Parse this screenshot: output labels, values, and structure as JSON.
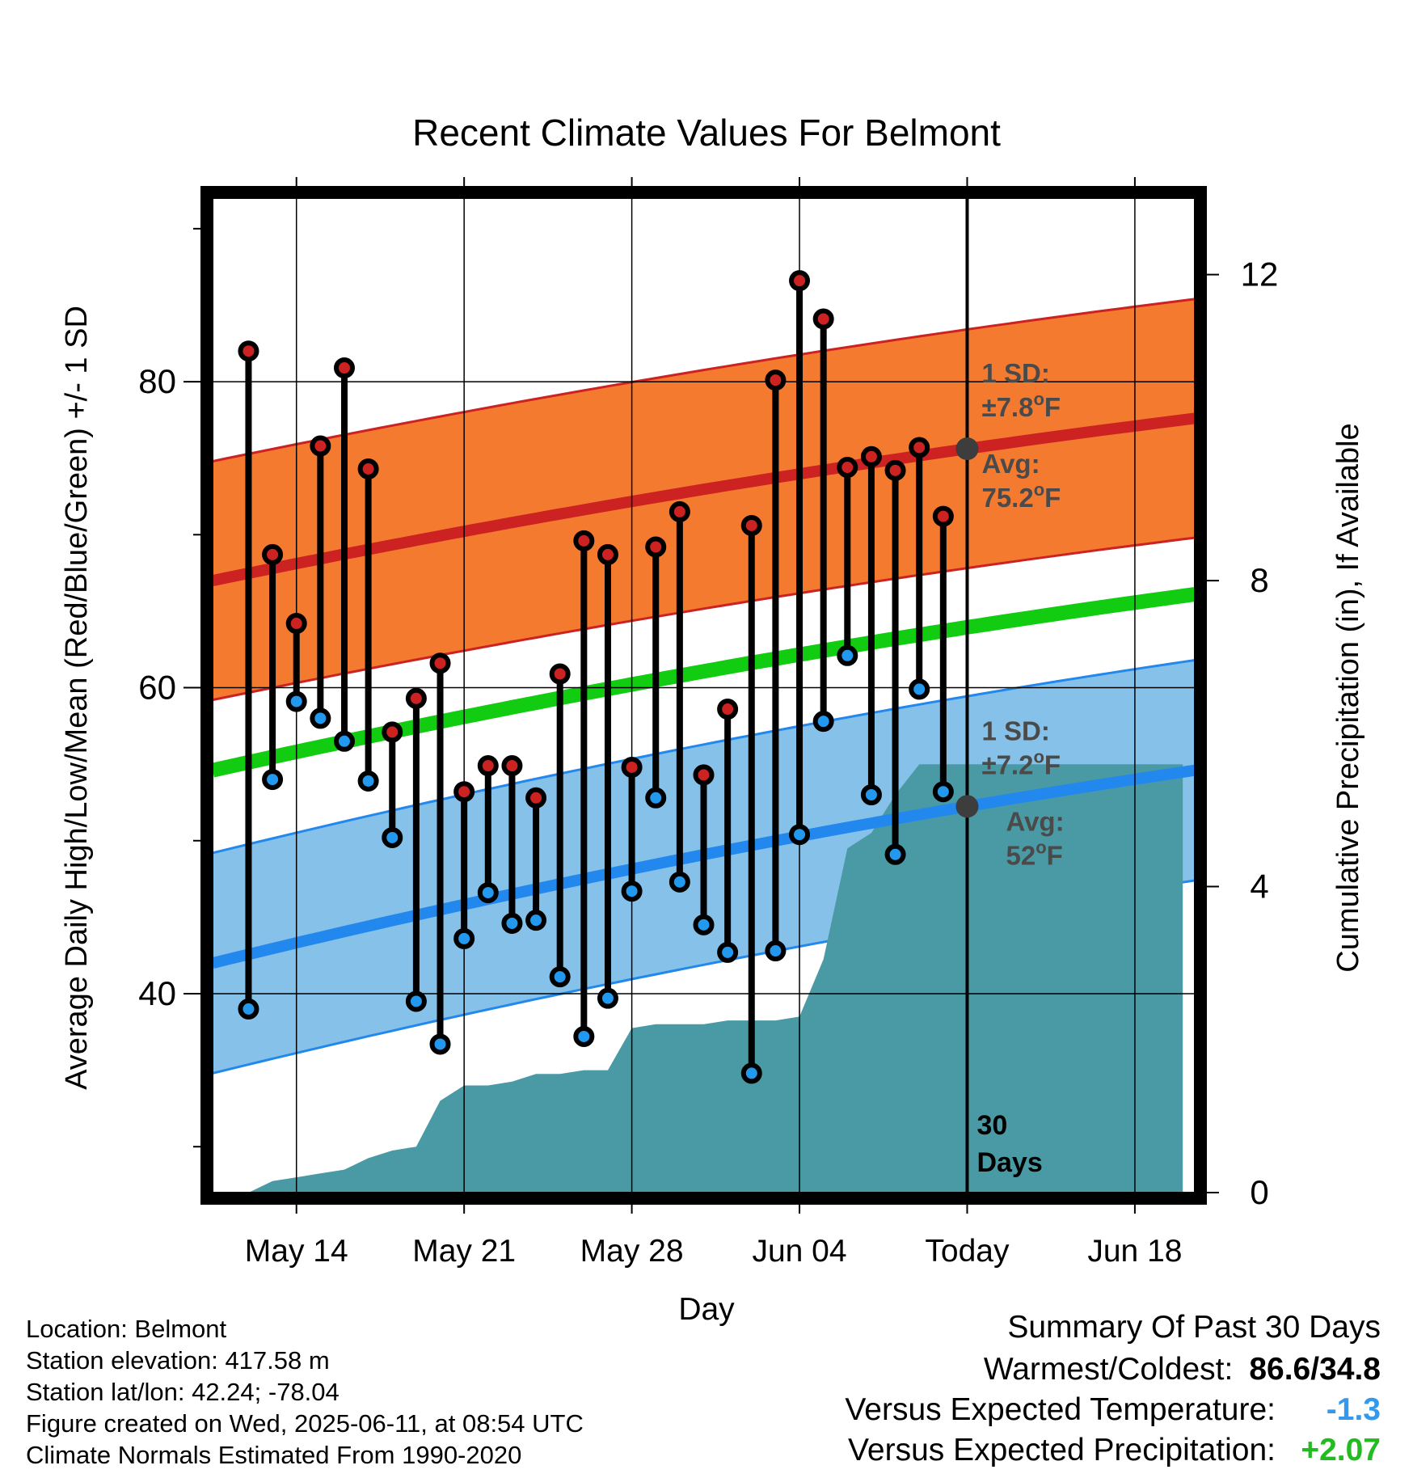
{
  "chart_data": {
    "type": "line",
    "title": "Recent Climate Values For Belmont",
    "xlabel": "Day",
    "ylabel_left": "Average Daily High/Low/Mean (Red/Blue/Green) +/- 1 SD",
    "ylabel_right": "Cumulative Precipitation (in), If Available",
    "x_tick_labels": [
      "May 14",
      "May 21",
      "May 28",
      "Jun 04",
      "Today",
      "Jun 18"
    ],
    "x_tick_days": [
      3,
      10,
      17,
      24,
      31,
      38
    ],
    "x_range_days": [
      -0.5,
      40.5
    ],
    "y_left_ticks": [
      40,
      60,
      80
    ],
    "y_left_range": [
      27,
      92
    ],
    "y_right_ticks": [
      0,
      4,
      8,
      12
    ],
    "y_right_range_at_left_axis": [
      27,
      0
    ],
    "y_right_scale_in_per_left_unit": 0.2,
    "days_note": "day 0 = May 11, today = Jun 11",
    "normals": {
      "high_mean": {
        "start": 67.0,
        "end": 77.6,
        "color": "#cc2222"
      },
      "high_sd": 7.8,
      "low_mean": {
        "start": 42.0,
        "end": 54.6,
        "color": "#2288ee"
      },
      "low_sd": 7.2,
      "overall_mean": {
        "start": 54.6,
        "end": 66.1,
        "color": "#11cc11"
      },
      "high_band_color": "#f47a30",
      "low_band_color": "#86c1e9"
    },
    "series": [
      {
        "name": "High",
        "color": "#cc2222",
        "values": [
          82.0,
          68.7,
          64.2,
          75.8,
          80.9,
          74.3,
          57.1,
          59.3,
          61.6,
          53.2,
          54.9,
          54.9,
          52.8,
          60.9,
          69.6,
          68.7,
          54.8,
          69.2,
          71.5,
          54.3,
          58.6,
          70.6,
          80.1,
          86.6,
          84.1,
          74.4,
          75.1,
          74.2,
          75.7,
          71.2
        ]
      },
      {
        "name": "Low",
        "color": "#2299ee",
        "values": [
          39.0,
          54.0,
          59.1,
          58.0,
          56.5,
          53.9,
          50.2,
          39.5,
          36.7,
          43.6,
          46.6,
          44.6,
          44.8,
          41.1,
          37.2,
          39.7,
          46.7,
          52.8,
          47.3,
          44.5,
          42.7,
          34.8,
          42.8,
          50.4,
          57.8,
          62.1,
          53.0,
          49.1,
          59.9,
          53.2
        ]
      },
      {
        "name": "Cumulative Precipitation",
        "color": "#4a9aa5",
        "days": [
          0,
          1,
          2,
          3,
          4,
          5,
          6,
          7,
          8,
          9,
          10,
          11,
          12,
          13,
          14,
          15,
          16,
          17,
          18,
          19,
          20,
          21,
          22,
          23,
          24,
          25,
          26,
          27,
          28,
          29,
          30,
          31,
          40
        ],
        "values": [
          0.0,
          0.0,
          0.15,
          0.2,
          0.25,
          0.3,
          0.45,
          0.55,
          0.6,
          1.2,
          1.4,
          1.4,
          1.45,
          1.55,
          1.55,
          1.6,
          1.6,
          2.15,
          2.2,
          2.2,
          2.2,
          2.25,
          2.25,
          2.25,
          2.3,
          3.05,
          4.5,
          4.7,
          5.2,
          5.6,
          5.6,
          5.6,
          5.6
        ]
      }
    ],
    "annotations": {
      "high": {
        "sd_label": "1 SD:",
        "sd_value": "±7.8",
        "avg_label": "Avg:",
        "avg_value": "75.2",
        "unit": "F"
      },
      "low": {
        "sd_label": "1 SD:",
        "sd_value": "±7.2",
        "avg_label": "Avg:",
        "avg_value": "52",
        "unit": "F"
      },
      "degree": "o",
      "period_number": "30",
      "period_word": "Days"
    },
    "grid": true
  },
  "footer": {
    "location": "Location: Belmont",
    "elevation": "Station elevation: 417.58 m",
    "latlon": "Station lat/lon: 42.24; -78.04",
    "created": "Figure created on Wed, 2025-06-11, at 08:54 UTC",
    "normals": "Climate Normals Estimated From 1990-2020"
  },
  "summary": {
    "title": "Summary Of Past 30 Days",
    "warm_cold_label": "Warmest/Coldest:",
    "warm_cold_value": "86.6/34.8",
    "temp_label": "Versus Expected Temperature:",
    "temp_value": "-1.3",
    "temp_color": "#3399ee",
    "precip_label": "Versus Expected Precipitation:",
    "precip_value": "+2.07",
    "precip_color": "#22bb22"
  }
}
